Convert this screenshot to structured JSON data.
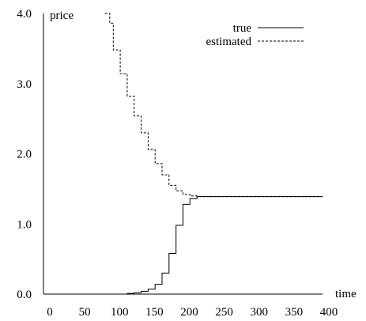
{
  "chart_data": {
    "type": "line",
    "xlabel": "time",
    "ylabel": "price",
    "xlim": [
      0,
      400
    ],
    "ylim": [
      0,
      4
    ],
    "x_ticks": [
      0,
      50,
      100,
      150,
      200,
      250,
      300,
      350,
      400
    ],
    "y_ticks": [
      "0.0",
      "1.0",
      "2.0",
      "3.0",
      "4.0"
    ],
    "grid": false,
    "legend_position": "top-right",
    "series": [
      {
        "name": "true",
        "style": "solid",
        "color": "#000000",
        "points": [
          [
            100,
            0.0
          ],
          [
            110,
            0.0
          ],
          [
            120,
            0.01
          ],
          [
            130,
            0.02
          ],
          [
            140,
            0.04
          ],
          [
            150,
            0.07
          ],
          [
            160,
            0.14
          ],
          [
            170,
            0.3
          ],
          [
            180,
            0.58
          ],
          [
            190,
            0.98
          ],
          [
            200,
            1.28
          ],
          [
            210,
            1.36
          ],
          [
            220,
            1.39
          ],
          [
            400,
            1.39
          ]
        ]
      },
      {
        "name": "estimated",
        "style": "dashed",
        "color": "#000000",
        "points": [
          [
            88,
            4.0
          ],
          [
            95,
            3.86
          ],
          [
            100,
            3.48
          ],
          [
            110,
            3.14
          ],
          [
            120,
            2.82
          ],
          [
            130,
            2.54
          ],
          [
            140,
            2.3
          ],
          [
            150,
            2.06
          ],
          [
            160,
            1.86
          ],
          [
            170,
            1.7
          ],
          [
            180,
            1.55
          ],
          [
            190,
            1.47
          ],
          [
            200,
            1.42
          ],
          [
            210,
            1.4
          ],
          [
            220,
            1.39
          ],
          [
            400,
            1.39
          ]
        ]
      }
    ]
  }
}
